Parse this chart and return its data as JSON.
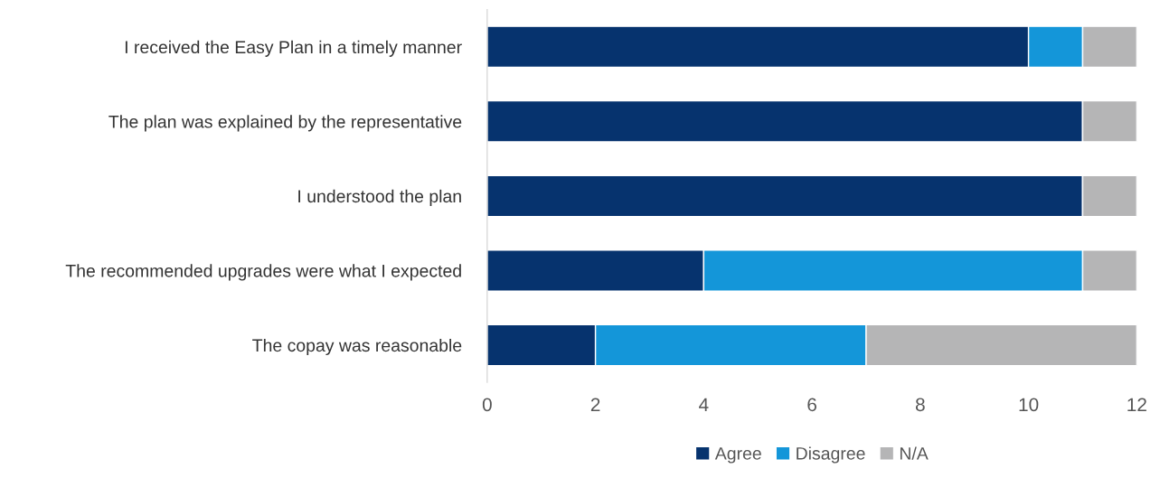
{
  "chart_data": {
    "type": "bar",
    "orientation": "horizontal",
    "stacked": true,
    "categories": [
      "I received the Easy Plan in a timely manner",
      "The plan was explained by the representative",
      "I understood the plan",
      "The recommended upgrades were what I expected",
      "The copay was reasonable"
    ],
    "series": [
      {
        "name": "Agree",
        "color": "#06336e",
        "values": [
          10,
          11,
          11,
          4,
          2
        ]
      },
      {
        "name": "Disagree",
        "color": "#1496d9",
        "values": [
          1,
          0,
          0,
          7,
          5
        ]
      },
      {
        "name": "N/A",
        "color": "#b5b5b6",
        "values": [
          1,
          1,
          1,
          1,
          5
        ]
      }
    ],
    "xlim": [
      0,
      12
    ],
    "xticks": [
      0,
      2,
      4,
      6,
      8,
      10,
      12
    ],
    "grid": false,
    "legend": "bottom"
  }
}
